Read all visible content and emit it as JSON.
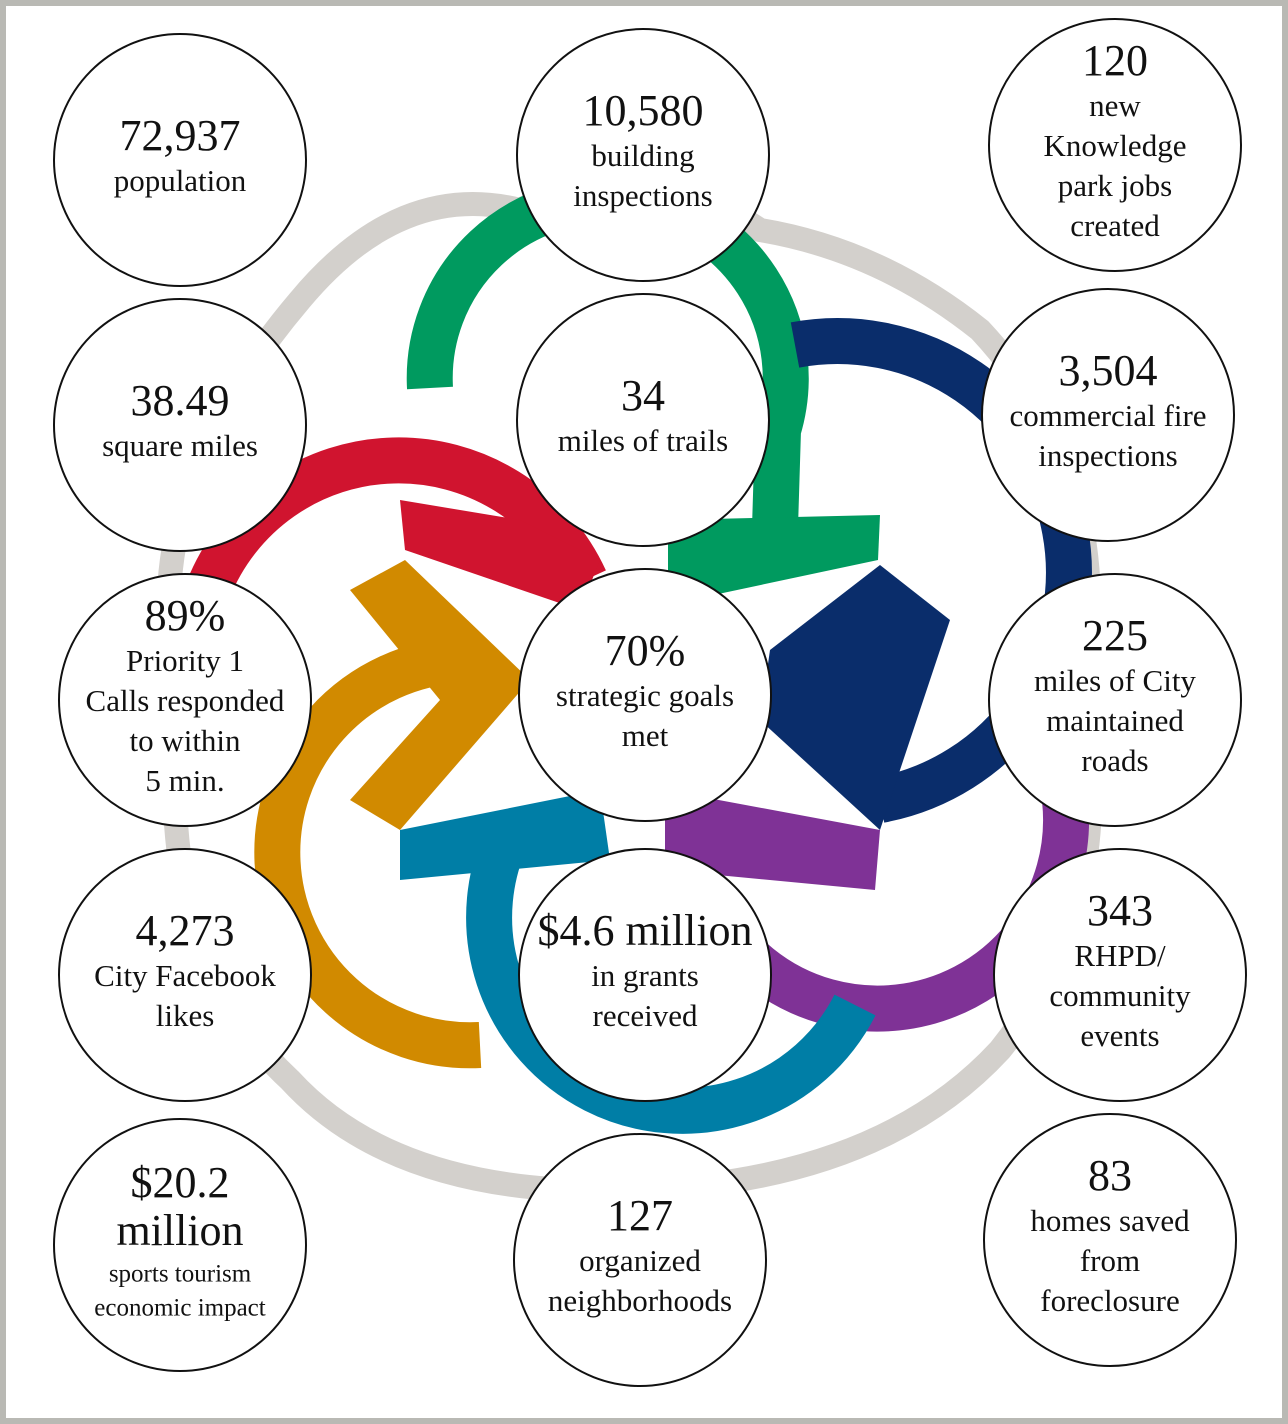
{
  "stats": [
    {
      "value": [
        "72,937"
      ],
      "label": [
        "population"
      ]
    },
    {
      "value": [
        "10,580"
      ],
      "label": [
        "building",
        "inspections"
      ]
    },
    {
      "value": [
        "120"
      ],
      "label": [
        "new",
        "Knowledge",
        "park jobs",
        "created"
      ]
    },
    {
      "value": [
        "38.49"
      ],
      "label": [
        "square miles"
      ]
    },
    {
      "value": [
        "34"
      ],
      "label": [
        "miles of trails"
      ]
    },
    {
      "value": [
        "3,504"
      ],
      "label": [
        "commercial fire",
        "inspections"
      ]
    },
    {
      "value": [
        "89%"
      ],
      "label": [
        "Priority 1",
        "Calls responded",
        "to within",
        "5 min."
      ]
    },
    {
      "value": [
        "70%"
      ],
      "label": [
        "strategic goals",
        "met"
      ]
    },
    {
      "value": [
        "225"
      ],
      "label": [
        "miles of City",
        "maintained",
        "roads"
      ]
    },
    {
      "value": [
        "4,273"
      ],
      "label": [
        "City Facebook",
        "likes"
      ]
    },
    {
      "value": [
        "$4.6 million"
      ],
      "label": [
        "in grants",
        "received"
      ]
    },
    {
      "value": [
        "343"
      ],
      "label": [
        "RHPD/",
        "community",
        "events"
      ]
    },
    {
      "value": [
        "$20.2",
        "million"
      ],
      "label": [
        "sports tourism",
        "economic impact"
      ]
    },
    {
      "value": [
        "127"
      ],
      "label": [
        "organized",
        "neighborhoods"
      ]
    },
    {
      "value": [
        "83"
      ],
      "label": [
        "homes saved",
        "from",
        "foreclosure"
      ]
    }
  ]
}
